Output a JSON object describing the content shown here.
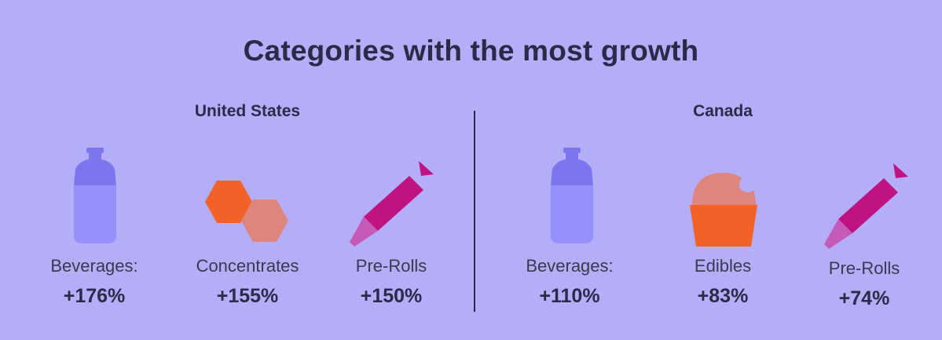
{
  "title": "Categories with the most growth",
  "regions": [
    {
      "name": "United States",
      "items": [
        {
          "label": "Beverages:",
          "value": "+176%",
          "icon": "bottle-icon"
        },
        {
          "label": "Concentrates",
          "value": "+155%",
          "icon": "hexagons-icon"
        },
        {
          "label": "Pre-Rolls",
          "value": "+150%",
          "icon": "pre-roll-icon"
        }
      ]
    },
    {
      "name": "Canada",
      "items": [
        {
          "label": "Beverages:",
          "value": "+110%",
          "icon": "bottle-icon"
        },
        {
          "label": "Edibles",
          "value": "+83%",
          "icon": "cupcake-icon"
        },
        {
          "label": "Pre-Rolls",
          "value": "+74%",
          "icon": "pre-roll-icon"
        }
      ]
    }
  ],
  "colors": {
    "background": "#b4aef9",
    "text": "#2b2a48",
    "bottle_top": "#7c76ee",
    "bottle_body": "#9590fb",
    "hex_orange": "#f26125",
    "hex_salmon": "#de857e",
    "preroll_magenta": "#be1380",
    "preroll_filter": "#c55ab8"
  }
}
